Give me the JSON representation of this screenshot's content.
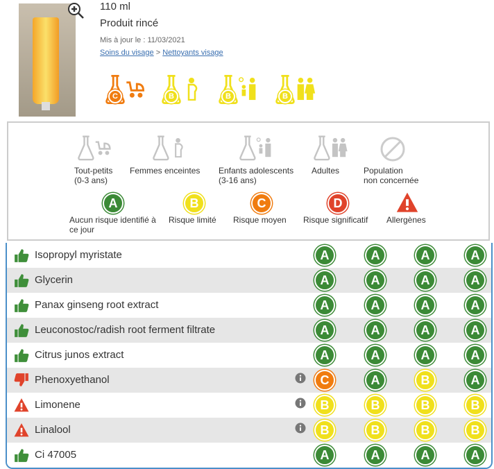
{
  "product": {
    "volume": "110 ml",
    "type": "Produit rincé",
    "updated": "Mis à jour le : 11/03/2021",
    "breadcrumb": [
      "Soins du visage",
      ">",
      "Nettoyants visage"
    ],
    "ratings": [
      "C",
      "B",
      "B",
      "B"
    ]
  },
  "legend": {
    "populations": [
      {
        "label": "Tout-petits",
        "sub": "(0-3 ans)"
      },
      {
        "label": "Femmes enceintes"
      },
      {
        "label": "Enfants adolescents",
        "sub": "(3-16 ans)"
      },
      {
        "label": "Adultes"
      },
      {
        "label": "Population",
        "sub": "non concernée"
      }
    ],
    "levels": [
      {
        "letter": "A",
        "label": "Aucun risque identifié à ce jour",
        "color": "#3b8a36"
      },
      {
        "letter": "B",
        "label": "Risque limité",
        "color": "#f0e01c"
      },
      {
        "letter": "C",
        "label": "Risque moyen",
        "color": "#f07c10"
      },
      {
        "letter": "D",
        "label": "Risque significatif",
        "color": "#e0432b"
      }
    ],
    "allergens": "Allergènes"
  },
  "ingredients": [
    {
      "name": "Isopropyl myristate",
      "ratings": [
        "A",
        "A",
        "A",
        "A"
      ]
    },
    {
      "name": "Glycerin",
      "ratings": [
        "A",
        "A",
        "A",
        "A"
      ]
    },
    {
      "name": "Panax ginseng root extract",
      "ratings": [
        "A",
        "A",
        "A",
        "A"
      ]
    },
    {
      "name": "Leuconostoc/radish root ferment filtrate",
      "ratings": [
        "A",
        "A",
        "A",
        "A"
      ]
    },
    {
      "name": "Citrus junos extract",
      "ratings": [
        "A",
        "A",
        "A",
        "A"
      ]
    },
    {
      "name": "Phenoxyethanol",
      "ratings": [
        "C",
        "A",
        "B",
        "A"
      ]
    },
    {
      "name": "Limonene",
      "ratings": [
        "B",
        "B",
        "B",
        "B"
      ]
    },
    {
      "name": "Linalool",
      "ratings": [
        "B",
        "B",
        "B",
        "B"
      ]
    },
    {
      "name": "Ci 47005",
      "ratings": [
        "A",
        "A",
        "A",
        "A"
      ]
    }
  ]
}
